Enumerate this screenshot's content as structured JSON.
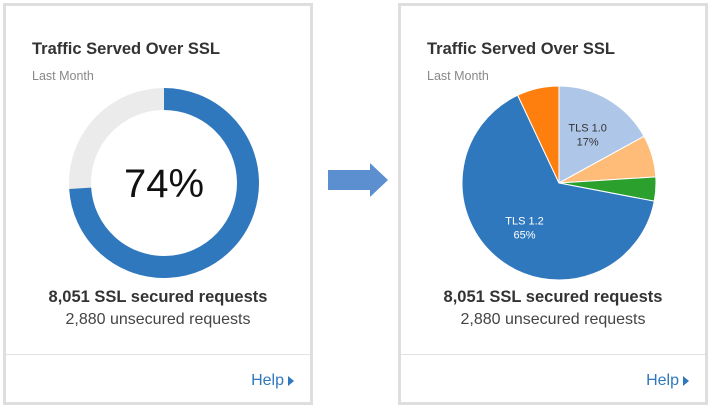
{
  "colors": {
    "accent": "#2f78be",
    "donut_track": "#ebebeb",
    "pie_orange": "#ff7f0e",
    "pie_light_blue": "#aec7e8",
    "pie_light_orange": "#ffbb78",
    "pie_green": "#2ca02c",
    "arrow": "#5b8fcf"
  },
  "left_card": {
    "title": "Traffic Served Over SSL",
    "subtitle": "Last Month",
    "center_value": "74%",
    "secured_label": "8,051 SSL secured requests",
    "unsecured_label": "2,880 unsecured requests",
    "help_label": "Help",
    "help_icon": "caret-right-icon"
  },
  "right_card": {
    "title": "Traffic Served Over SSL",
    "subtitle": "Last Month",
    "secured_label": "8,051 SSL secured requests",
    "unsecured_label": "2,880 unsecured requests",
    "help_label": "Help",
    "help_icon": "caret-right-icon"
  },
  "transition_icon": "arrow-right-icon",
  "chart_data": [
    {
      "type": "pie",
      "variant": "donut",
      "values": [
        74,
        26
      ],
      "center_label": "74%"
    },
    {
      "type": "pie",
      "slices": [
        {
          "label": "TLS 1.0",
          "percent_label": "17%",
          "value": 17,
          "color": "#aec7e8"
        },
        {
          "label": "",
          "percent_label": "",
          "value": 7,
          "color": "#ffbb78"
        },
        {
          "label": "",
          "percent_label": "",
          "value": 4,
          "color": "#2ca02c"
        },
        {
          "label": "TLS 1.2",
          "percent_label": "65%",
          "value": 65,
          "color": "#2f78be"
        },
        {
          "label": "",
          "percent_label": "",
          "value": 7,
          "color": "#ff7f0e"
        }
      ]
    }
  ]
}
